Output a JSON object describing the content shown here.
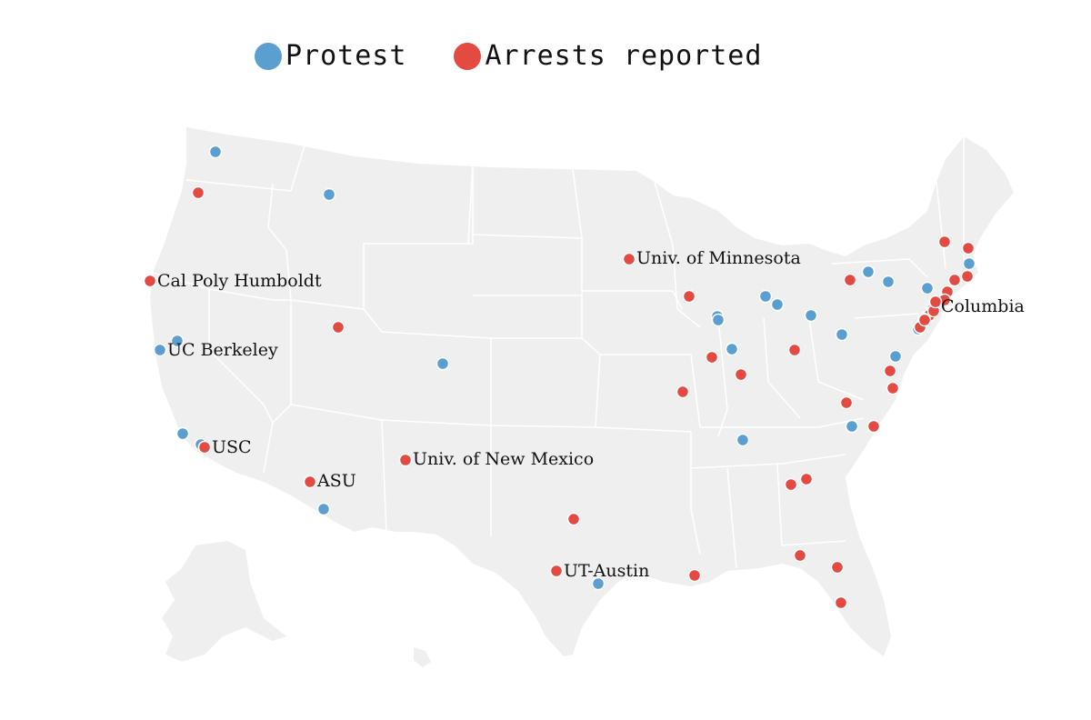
{
  "legend": {
    "protest_label": "Protest",
    "arrests_label": "Arrests reported",
    "protest_color": "#5b9fd0",
    "arrests_color": "#e34a42"
  },
  "map_style": {
    "land": "#efefef",
    "borders": "#ffffff"
  },
  "labeled_sites": [
    {
      "label": "Univ. of Minnesota",
      "type": "arrests"
    },
    {
      "label": "Cal Poly Humboldt",
      "type": "arrests"
    },
    {
      "label": "Columbia",
      "type": "arrests"
    },
    {
      "label": "UC Berkeley",
      "type": "protest"
    },
    {
      "label": "USC",
      "type": "arrests"
    },
    {
      "label": "Univ. of New Mexico",
      "type": "arrests"
    },
    {
      "label": "ASU",
      "type": "arrests"
    },
    {
      "label": "UT-Austin",
      "type": "arrests"
    }
  ],
  "site_counts": {
    "protest": 28,
    "arrests": 37
  }
}
